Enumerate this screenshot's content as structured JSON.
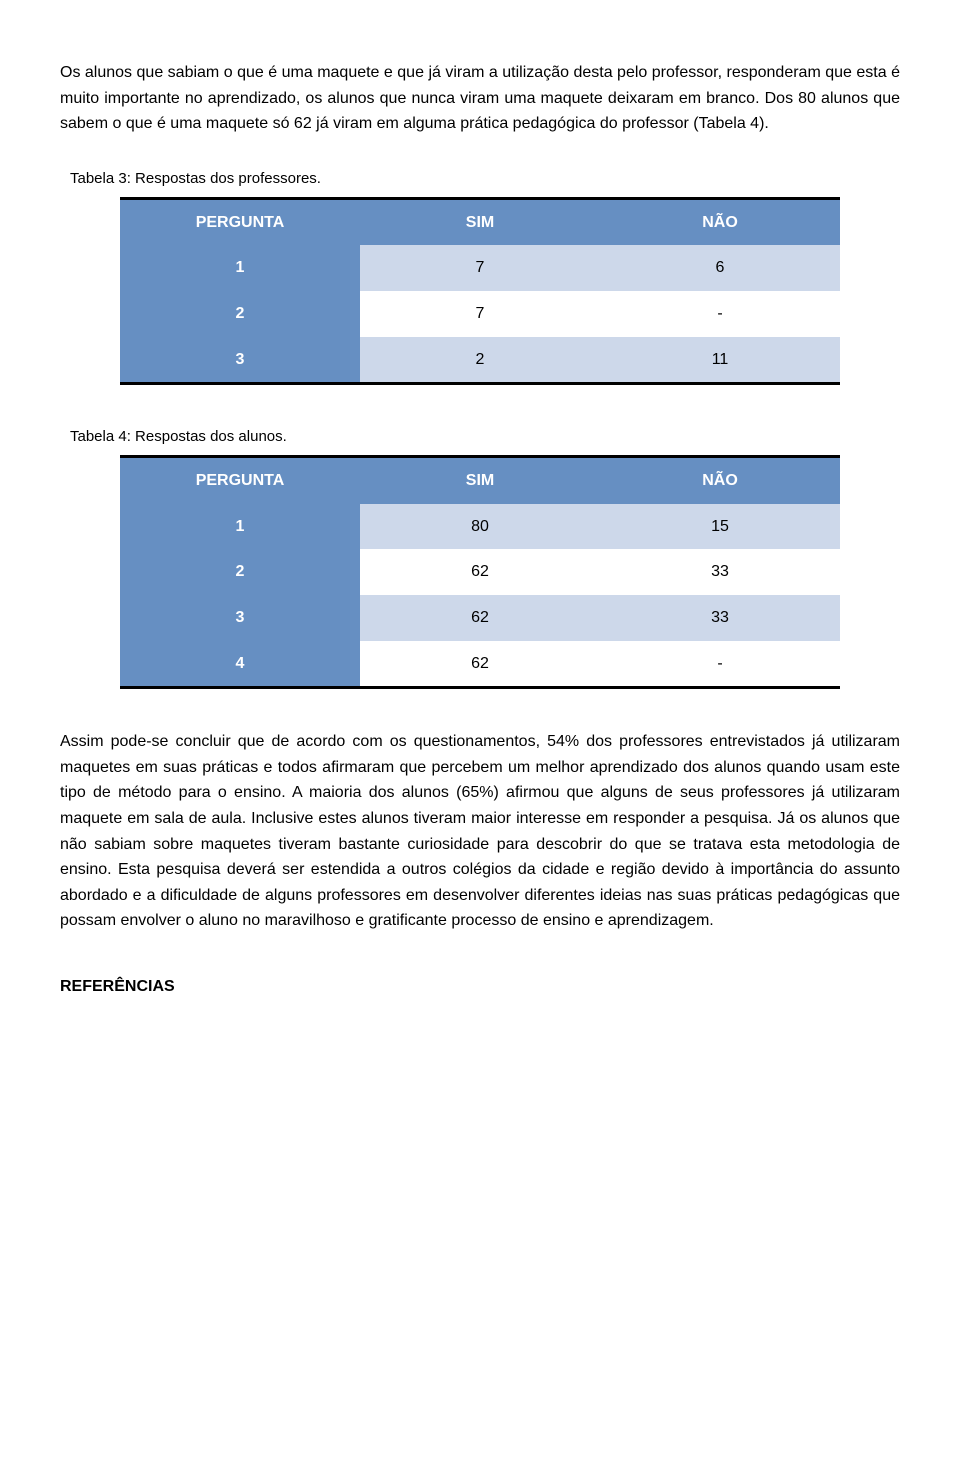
{
  "paragraph1": "Os alunos que sabiam o que é uma maquete e que já viram a utilização desta pelo professor, responderam que esta é muito importante no aprendizado, os alunos que nunca viram uma maquete deixaram em branco. Dos 80 alunos que sabem o que é uma maquete só 62 já viram em alguma prática pedagógica do professor (Tabela 4).",
  "table3": {
    "caption": "Tabela 3: Respostas dos professores.",
    "headers": [
      "PERGUNTA",
      "SIM",
      "NÃO"
    ],
    "rows": [
      {
        "label": "1",
        "sim": "7",
        "nao": "6",
        "alt": true
      },
      {
        "label": "2",
        "sim": "7",
        "nao": "-",
        "alt": false
      },
      {
        "label": "3",
        "sim": "2",
        "nao": "11",
        "alt": true
      }
    ],
    "header_bg": "#668fc2",
    "header_fg": "#ffffff",
    "alt_bg": "#cdd8ea"
  },
  "table4": {
    "caption": "Tabela 4: Respostas dos alunos.",
    "headers": [
      "PERGUNTA",
      "SIM",
      "NÃO"
    ],
    "rows": [
      {
        "label": "1",
        "sim": "80",
        "nao": "15",
        "alt": true
      },
      {
        "label": "2",
        "sim": "62",
        "nao": "33",
        "alt": false
      },
      {
        "label": "3",
        "sim": "62",
        "nao": "33",
        "alt": true
      },
      {
        "label": "4",
        "sim": "62",
        "nao": "-",
        "alt": false
      }
    ],
    "header_bg": "#668fc2",
    "header_fg": "#ffffff",
    "alt_bg": "#cdd8ea"
  },
  "paragraph2": "Assim pode-se concluir que de acordo com os questionamentos, 54% dos professores entrevistados já utilizaram maquetes em suas práticas e todos afirmaram que percebem um melhor aprendizado dos alunos quando usam este tipo de método para o ensino. A maioria dos alunos (65%) afirmou que alguns de seus professores já utilizaram maquete em sala de aula. Inclusive estes alunos tiveram maior interesse em responder a pesquisa. Já os alunos que não sabiam sobre maquetes tiveram bastante curiosidade para descobrir do que se tratava esta metodologia de ensino. Esta pesquisa deverá ser estendida a outros colégios da cidade e região devido à importância do assunto abordado e a dificuldade de alguns professores em desenvolver diferentes ideias nas suas práticas pedagógicas que possam envolver o aluno no maravilhoso e gratificante processo de ensino e aprendizagem.",
  "references_heading": "REFERÊNCIAS"
}
